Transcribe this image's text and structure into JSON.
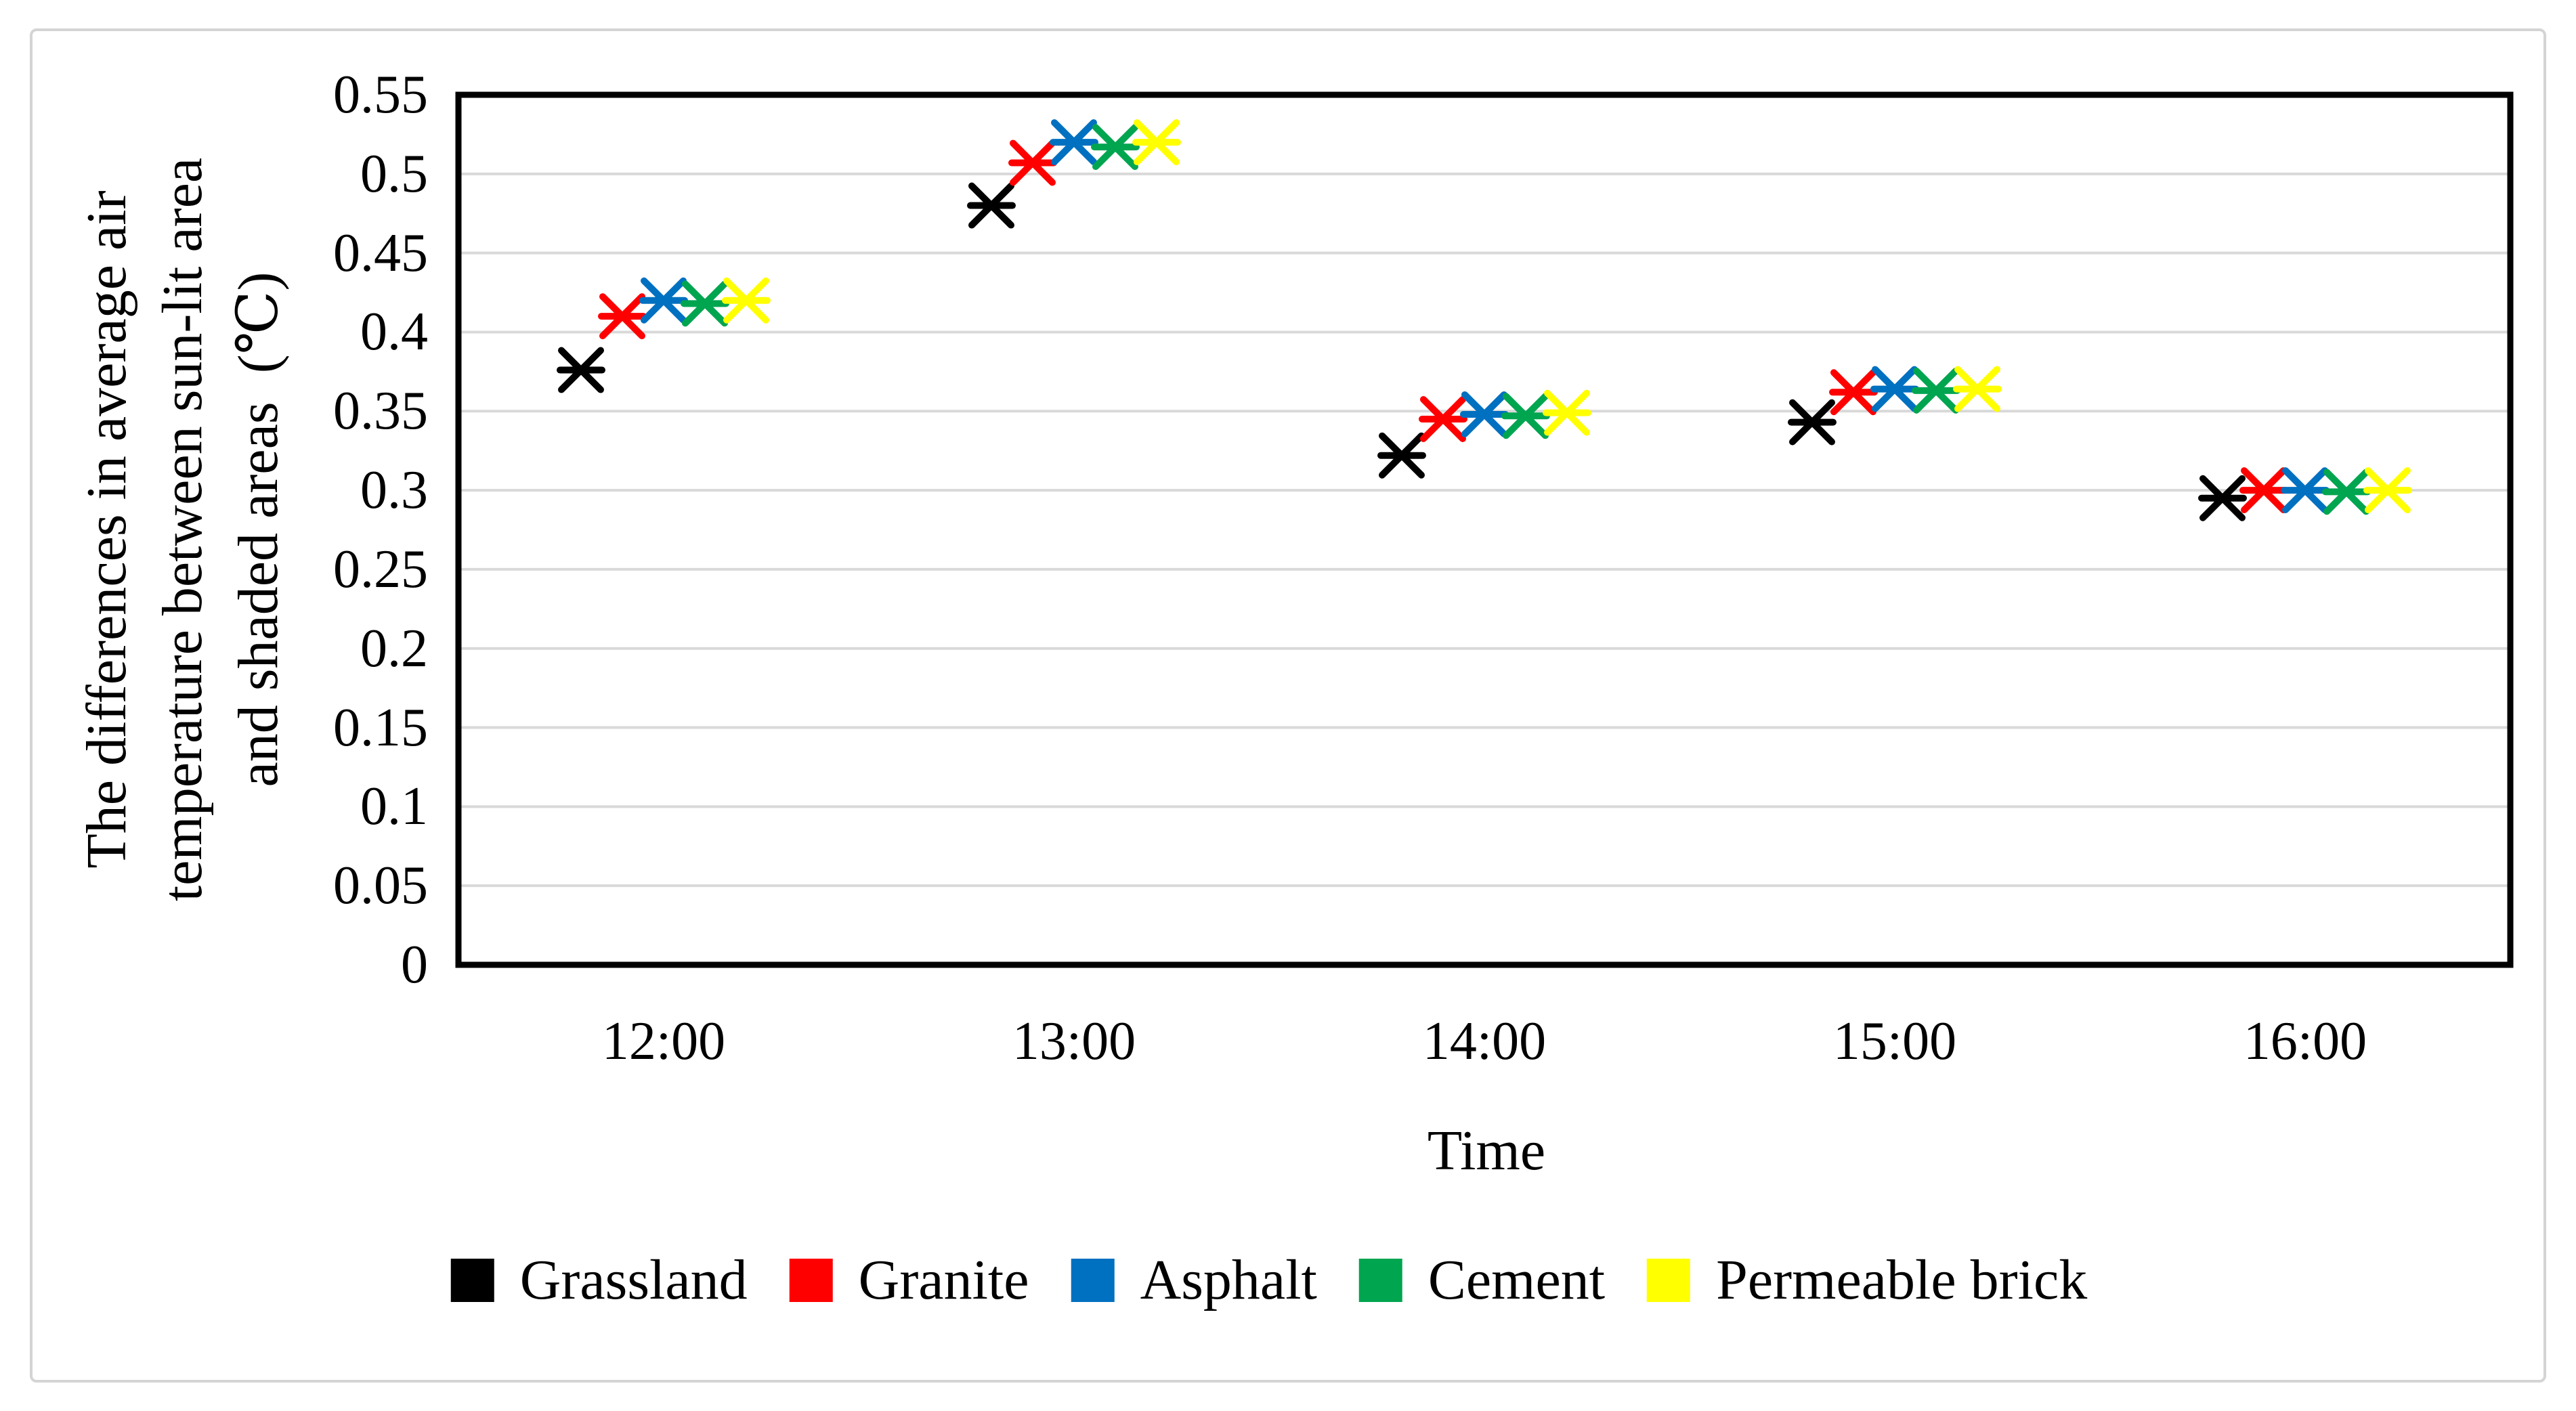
{
  "figure": {
    "kind": "scientific-scatter-figure",
    "background_color": "#ffffff",
    "outer_border_color": "#d4d4d4",
    "plot_border_color": "#000000",
    "gridline_color": "#d9d9d9"
  },
  "chart_data": {
    "type": "scatter",
    "marker": "x-with-horizontal-bar",
    "grid": "horizontal",
    "legend_position": "bottom",
    "xlabel": "Time",
    "ylabel_lines": [
      "The differences in average air",
      "temperature between sun-lit area",
      "and shaded areas  (℃)"
    ],
    "categories": [
      "12:00",
      "13:00",
      "14:00",
      "15:00",
      "16:00"
    ],
    "x_offsets_hours": [
      -0.2,
      -0.1,
      0,
      0.1,
      0.2
    ],
    "ylim": [
      0,
      0.55
    ],
    "y_tick_step": 0.05,
    "y_ticks": [
      "0",
      "0.05",
      "0.1",
      "0.15",
      "0.2",
      "0.25",
      "0.3",
      "0.35",
      "0.4",
      "0.45",
      "0.5",
      "0.55"
    ],
    "series": [
      {
        "name": "Grassland",
        "color": "#000000",
        "values": [
          0.376,
          0.48,
          0.322,
          0.343,
          0.295
        ]
      },
      {
        "name": "Granite",
        "color": "#ff0000",
        "values": [
          0.41,
          0.507,
          0.345,
          0.362,
          0.3
        ]
      },
      {
        "name": "Asphalt",
        "color": "#0070c0",
        "values": [
          0.42,
          0.52,
          0.348,
          0.364,
          0.3
        ]
      },
      {
        "name": "Cement",
        "color": "#00a550",
        "values": [
          0.418,
          0.517,
          0.347,
          0.363,
          0.299
        ]
      },
      {
        "name": "Permeable brick",
        "color": "#ffff00",
        "values": [
          0.42,
          0.52,
          0.349,
          0.364,
          0.3
        ]
      }
    ]
  }
}
